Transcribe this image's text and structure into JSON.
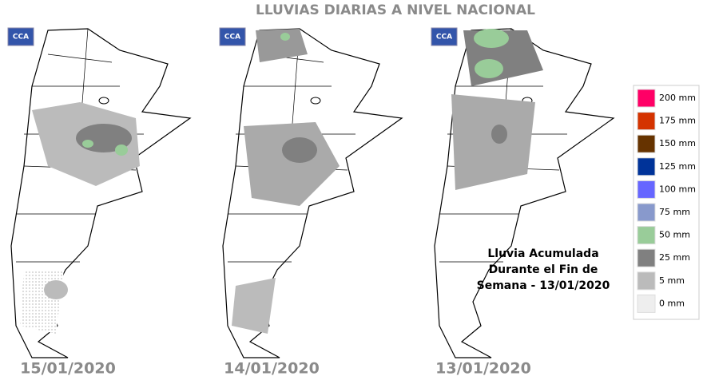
{
  "title": "LLUVIAS DIARIAS A NIVEL NACIONAL",
  "maps": [
    {
      "logo": "CCA",
      "date": "15/01/2020"
    },
    {
      "logo": "CCA",
      "date": "14/01/2020"
    },
    {
      "logo": "CCA",
      "date": "13/01/2020"
    }
  ],
  "annotation": [
    "Lluvia Acumulada",
    "Durante el Fin de",
    "Semana - 13/01/2020"
  ],
  "legend": [
    {
      "label": "200 mm",
      "color": "#ff0066"
    },
    {
      "label": "175 mm",
      "color": "#d43300"
    },
    {
      "label": "150 mm",
      "color": "#663300"
    },
    {
      "label": "125 mm",
      "color": "#003399"
    },
    {
      "label": "100 mm",
      "color": "#6666ff"
    },
    {
      "label": "75 mm",
      "color": "#8899cc"
    },
    {
      "label": "50 mm",
      "color": "#99cc99"
    },
    {
      "label": "25 mm",
      "color": "#808080"
    },
    {
      "label": "5 mm",
      "color": "#bbbbbb"
    },
    {
      "label": "0 mm",
      "color": "#eeeeee"
    }
  ]
}
